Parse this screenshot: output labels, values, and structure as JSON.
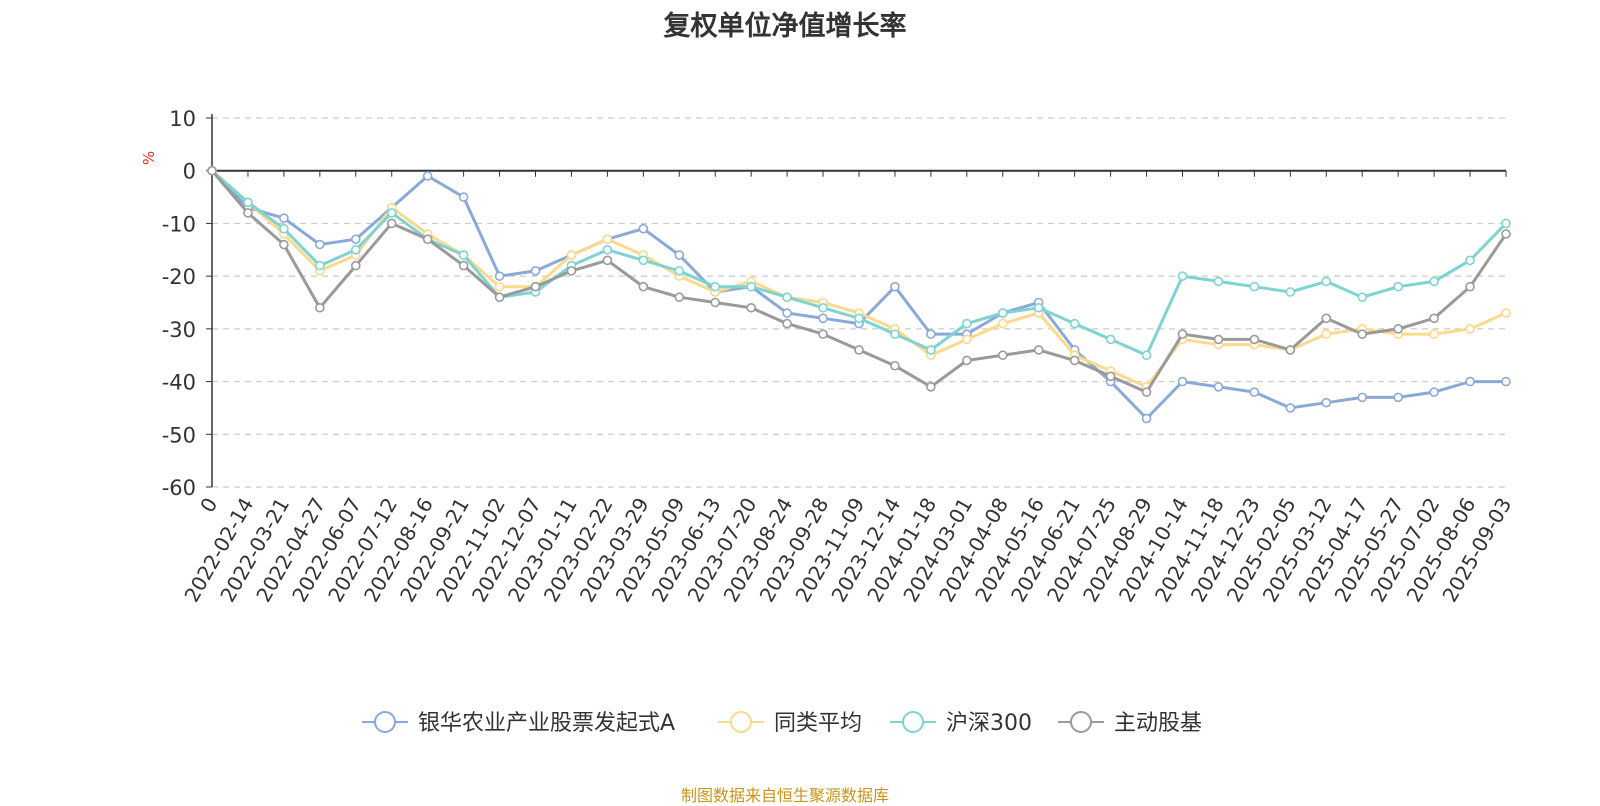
{
  "chart_data": {
    "type": "line",
    "title": "复权单位净值增长率",
    "ylabel": "%",
    "ylim": [
      -60,
      10
    ],
    "yticks": [
      10,
      0,
      -10,
      -20,
      -30,
      -40,
      -50,
      -60
    ],
    "grid": true,
    "legend_position": "bottom-center",
    "x_labels": [
      "0",
      "2022-02-14",
      "2022-03-21",
      "2022-04-27",
      "2022-06-07",
      "2022-07-12",
      "2022-08-16",
      "2022-09-21",
      "2022-11-02",
      "2022-12-07",
      "2023-01-11",
      "2023-02-22",
      "2023-03-29",
      "2023-05-09",
      "2023-06-13",
      "2023-07-20",
      "2023-08-24",
      "2023-09-28",
      "2023-11-09",
      "2023-12-14",
      "2024-01-18",
      "2024-03-01",
      "2024-04-08",
      "2024-05-16",
      "2024-06-21",
      "2024-07-25",
      "2024-08-29",
      "2024-10-14",
      "2024-11-18",
      "2024-12-23",
      "2025-02-05",
      "2025-03-12",
      "2025-04-17",
      "2025-05-27",
      "2025-07-02",
      "2025-08-06",
      "2025-09-03"
    ],
    "series": [
      {
        "name": "银华农业产业股票发起式A",
        "color": "#8aa9d8",
        "values": [
          0,
          -7,
          -9,
          -14,
          -13,
          -7,
          -1,
          -5,
          -20,
          -19,
          -16,
          -13,
          -11,
          -16,
          -23,
          -22,
          -27,
          -28,
          -29,
          -22,
          -31,
          -31,
          -27,
          -25,
          -34,
          -40,
          -47,
          -40,
          -41,
          -42,
          -45,
          -44,
          -43,
          -43,
          -42,
          -40,
          -40
        ]
      },
      {
        "name": "同类平均",
        "color": "#fcd98c",
        "values": [
          0,
          -6,
          -12,
          -19,
          -16,
          -7,
          -12,
          -16,
          -22,
          -22,
          -16,
          -13,
          -16,
          -20,
          -23,
          -21,
          -24,
          -25,
          -27,
          -30,
          -35,
          -32,
          -29,
          -27,
          -35,
          -38,
          -41,
          -32,
          -33,
          -33,
          -34,
          -31,
          -30,
          -31,
          -31,
          -30,
          -27
        ]
      },
      {
        "name": "沪深300",
        "color": "#7ed3d3",
        "values": [
          0,
          -6,
          -11,
          -18,
          -15,
          -8,
          -13,
          -16,
          -24,
          -23,
          -18,
          -15,
          -17,
          -19,
          -22,
          -22,
          -24,
          -26,
          -28,
          -31,
          -34,
          -29,
          -27,
          -26,
          -29,
          -32,
          -35,
          -20,
          -21,
          -22,
          -23,
          -21,
          -24,
          -22,
          -21,
          -17,
          -10
        ]
      },
      {
        "name": "主动股基",
        "color": "#9a9a9a",
        "values": [
          0,
          -8,
          -14,
          -26,
          -18,
          -10,
          -13,
          -18,
          -24,
          -22,
          -19,
          -17,
          -22,
          -24,
          -25,
          -26,
          -29,
          -31,
          -34,
          -37,
          -41,
          -36,
          -35,
          -34,
          -36,
          -39,
          -42,
          -31,
          -32,
          -32,
          -34,
          -28,
          -31,
          -30,
          -28,
          -22,
          -12
        ]
      }
    ]
  },
  "footer": {
    "source": "制图数据来自恒生聚源数据库"
  }
}
